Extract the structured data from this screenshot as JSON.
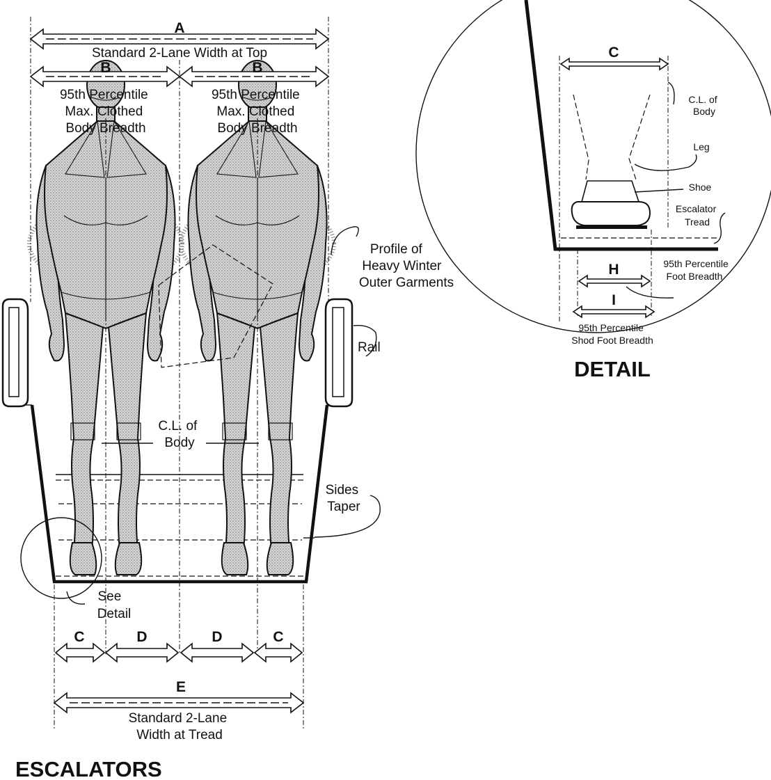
{
  "escalators": {
    "title": "ESCALATORS",
    "dim_a": {
      "letter": "A",
      "text": "Standard 2-Lane Width at Top"
    },
    "dim_b_left": {
      "letter": "B",
      "lines": [
        "95th Percentile",
        "Max. Clothed",
        "Body Breadth"
      ]
    },
    "dim_b_right": {
      "letter": "B",
      "lines": [
        "95th Percentile",
        "Max. Clothed",
        "Body Breadth"
      ]
    },
    "profile_label": [
      "Profile of",
      "Heavy Winter",
      "Outer Garments"
    ],
    "rail_label": "Rail",
    "cl_label": [
      "C.L. of",
      "Body"
    ],
    "sides_label": [
      "Sides",
      "Taper"
    ],
    "see_detail": [
      "See",
      "Detail"
    ],
    "dim_c_left": "C",
    "dim_d_left": "D",
    "dim_d_right": "D",
    "dim_c_right": "C",
    "dim_e": {
      "letter": "E",
      "lines": [
        "Standard 2-Lane",
        "Width at Tread"
      ]
    }
  },
  "detail": {
    "title": "DETAIL",
    "dim_c": "C",
    "cl_label": [
      "C.L. of",
      "Body"
    ],
    "leg_label": "Leg",
    "shoe_label": "Shoe",
    "tread_label": [
      "Escalator",
      "Tread"
    ],
    "dim_h": {
      "letter": "H",
      "lines": [
        "95th Percentile",
        "Foot Breadth"
      ]
    },
    "dim_i": {
      "letter": "I",
      "lines": [
        "95th Percentile",
        "Shod Foot Breadth"
      ]
    }
  }
}
